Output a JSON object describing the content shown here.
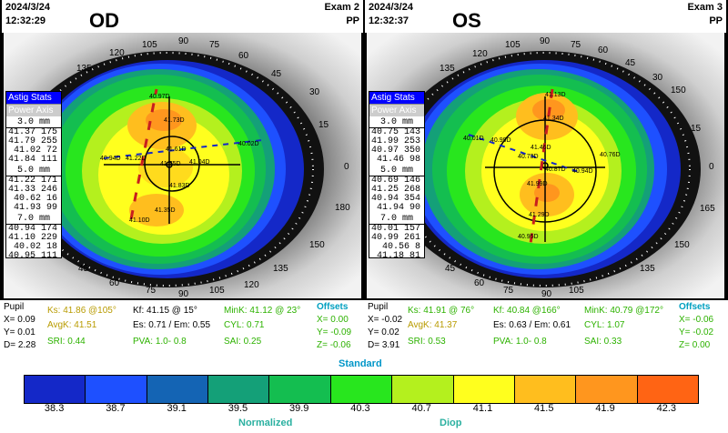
{
  "left": {
    "date": "2024/3/24",
    "time": "12:32:29",
    "eye": "OD",
    "exam": "Exam 2",
    "mode": "PP",
    "tab_stats": "Astig Stats",
    "tab_power": "Power Axis",
    "zones": [
      {
        "h": "3.0 mm",
        "rows": [
          "41.37 175",
          "41.79 255",
          "41.02  72",
          "41.84 111"
        ]
      },
      {
        "h": "5.0 mm",
        "rows": [
          "41.22 171",
          "41.33 246",
          "40.62  16",
          "41.93  99"
        ]
      },
      {
        "h": "7.0 mm",
        "rows": [
          "40.94 174",
          "41.10 229",
          "40.02  18",
          "40.95 111"
        ]
      }
    ],
    "map_values": [
      "40.97D",
      "41.73D",
      "41.61D",
      "41.75D",
      "40.94D",
      "41.22D",
      "41.04D",
      "40.02D",
      "41.83D",
      "41.35D",
      "41.10D"
    ],
    "axis_labels": [
      "90",
      "75",
      "105",
      "60",
      "120",
      "45",
      "135",
      "30",
      "150",
      "15",
      "165",
      "0",
      "180",
      "165",
      "15",
      "150",
      "30",
      "135",
      "45",
      "120",
      "60",
      "105",
      "75",
      "90"
    ],
    "stats": {
      "pupil": "Pupil",
      "x": "X= 0.09",
      "y": "Y= 0.01",
      "d": "D= 2.28",
      "ks": "Ks: 41.86 @105°",
      "kf": "Kf: 41.15 @ 15°",
      "mink": "MinK: 41.12 @ 23°",
      "offsets": "Offsets",
      "avgk": "AvgK: 41.51",
      "es": "Es: 0.71 / Em: 0.55",
      "cyl": "CYL: 0.71",
      "ox": "X=  0.00",
      "oy": "Y= -0.09",
      "sri": "SRI: 0.44",
      "pva": "PVA:  1.0-  0.8",
      "sai": "SAI: 0.25",
      "oz": "Z= -0.06"
    }
  },
  "right": {
    "date": "2024/3/24",
    "time": "12:32:37",
    "eye": "OS",
    "exam": "Exam 3",
    "mode": "PP",
    "tab_stats": "Astig Stats",
    "tab_power": "Power Axis",
    "zones": [
      {
        "h": "3.0 mm",
        "rows": [
          "40.75 143",
          "41.99 253",
          "40.97 350",
          "41.46  98"
        ]
      },
      {
        "h": "5.0 mm",
        "rows": [
          "40.69 146",
          "41.25 268",
          "40.94 354",
          "41.94  90"
        ]
      },
      {
        "h": "7.0 mm",
        "rows": [
          "40.01 157",
          "40.99 261",
          "40.56   8",
          "41.18  81"
        ]
      }
    ],
    "map_values": [
      "41.13D",
      "41.34D",
      "40.01D",
      "40.99D",
      "41.46D",
      "40.73D",
      "40.76D",
      "40.87D",
      "40.94D",
      "41.99D",
      "41.29D",
      "40.95D"
    ],
    "axis_labels": [
      "90",
      "75",
      "105",
      "60",
      "120",
      "45",
      "135",
      "30",
      "150",
      "15",
      "165",
      "0",
      "180",
      "165",
      "15",
      "150",
      "30",
      "135",
      "45",
      "120",
      "60",
      "105",
      "75",
      "90"
    ],
    "stats": {
      "pupil": "Pupil",
      "x": "X= -0.02",
      "y": "Y=  0.02",
      "d": "D=  3.91",
      "ks": "Ks: 41.91 @ 76°",
      "kf": "Kf: 40.84 @166°",
      "mink": "MinK: 40.79 @172°",
      "offsets": "Offsets",
      "avgk": "AvgK: 41.37",
      "es": "Es: 0.63 / Em: 0.61",
      "cyl": "CYL: 1.07",
      "ox": "X= -0.06",
      "oy": "Y= -0.02",
      "sri": "SRI: 0.53",
      "pva": "PVA:  1.0-  0.8",
      "sai": "SAI: 0.33",
      "oz": "Z=  0.00"
    }
  },
  "scale": {
    "title": "Standard",
    "colors": [
      "#1428c8",
      "#1e50ff",
      "#1464b4",
      "#14a078",
      "#14be50",
      "#28e61e",
      "#b4f01e",
      "#ffff1e",
      "#ffbe1e",
      "#ff961e",
      "#ff6414"
    ],
    "ticks": [
      "38.3",
      "38.7",
      "39.1",
      "39.5",
      "39.9",
      "40.3",
      "40.7",
      "41.1",
      "41.5",
      "41.9",
      "42.3"
    ],
    "normalized": "Normalized",
    "diop": "Diop"
  }
}
